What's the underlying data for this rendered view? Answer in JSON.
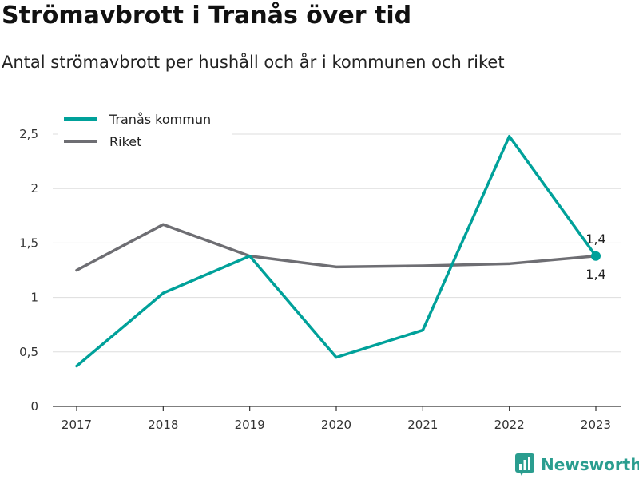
{
  "title": "Strömavbrott i Tranås över tid",
  "subtitle": "Antal strömavbrott per hushåll och år i kommunen och riket",
  "brand": {
    "name": "Newsworthy",
    "color": "#2a9d8f",
    "icon": "bar-chart-logo-icon"
  },
  "chart_data": {
    "type": "line",
    "x": [
      "2017",
      "2018",
      "2019",
      "2020",
      "2021",
      "2022",
      "2023"
    ],
    "series": [
      {
        "name": "Tranås kommun",
        "color": "#00a19a",
        "values": [
          0.37,
          1.04,
          1.38,
          0.45,
          0.7,
          2.48,
          1.38
        ]
      },
      {
        "name": "Riket",
        "color": "#6e6e73",
        "values": [
          1.25,
          1.67,
          1.38,
          1.28,
          1.29,
          1.31,
          1.38
        ]
      }
    ],
    "ylim": [
      0,
      2.5
    ],
    "yticks": [
      0,
      0.5,
      1,
      1.5,
      2,
      2.5
    ],
    "ytick_labels": [
      "0",
      "0,5",
      "1",
      "1,5",
      "2",
      "2,5"
    ],
    "grid": true,
    "legend": "top-left",
    "annotations": [
      {
        "x": "2023",
        "text_above": "1,4",
        "text_below": "1,4"
      }
    ],
    "xlabel": "",
    "ylabel": ""
  }
}
